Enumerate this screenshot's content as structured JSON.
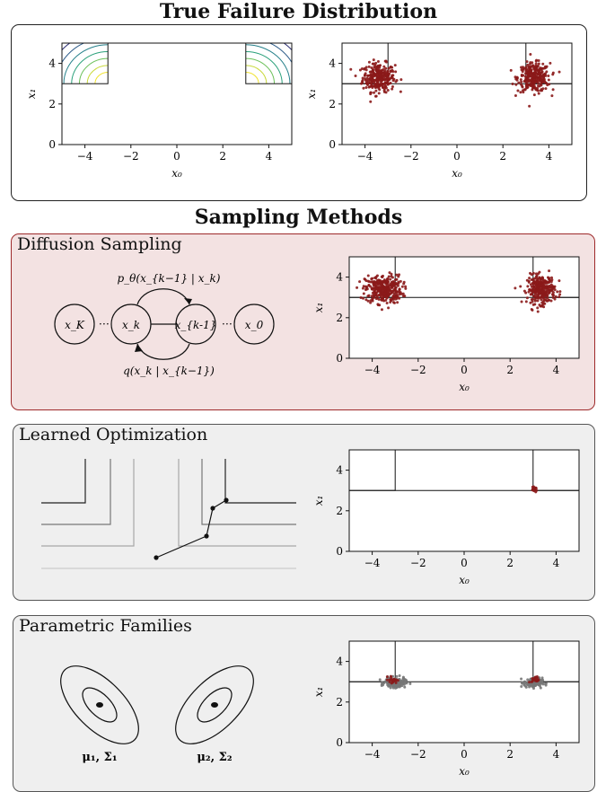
{
  "headings": {
    "true_failure": "True Failure Distribution",
    "sampling_methods": "Sampling Methods"
  },
  "colors": {
    "diffusion_panel_bg": "#f3e2e2",
    "diffusion_panel_border": "#9e2a2b",
    "gray_panel_bg": "#efefef",
    "samples_red": "#8b1a1a",
    "samples_gray": "#777777"
  },
  "diffusion": {
    "title": "Diffusion Sampling",
    "nodes": [
      "x_K",
      "x_k",
      "x_{k-1}",
      "x_0"
    ],
    "reverse_label": "p_θ(x_{k−1} | x_k)",
    "forward_label": "q(x_k | x_{k−1})"
  },
  "learned_optimization": {
    "title": "Learned Optimization"
  },
  "parametric": {
    "title": "Parametric Families",
    "component1": "μ₁, Σ₁",
    "component2": "μ₂, Σ₂"
  },
  "axes": {
    "xlabel": "x₀",
    "ylabel": "x₁",
    "xticks": [
      -4,
      -2,
      0,
      2,
      4
    ],
    "yticks": [
      0,
      2,
      4
    ],
    "xlim": [
      -5,
      5
    ],
    "ylim": [
      0,
      5
    ]
  },
  "failure_regions": [
    {
      "x": [
        -5,
        -3
      ],
      "y": [
        3,
        5
      ]
    },
    {
      "x": [
        3,
        5
      ],
      "y": [
        3,
        5
      ]
    }
  ],
  "chart_data": [
    {
      "type": "heatmap",
      "id": "true-density",
      "xlabel": "x₀",
      "ylabel": "x₁",
      "xlim": [
        -5,
        5
      ],
      "ylim": [
        0,
        5
      ],
      "description_regions": [
        [
          -5,
          -3,
          3,
          5
        ],
        [
          3,
          5,
          3,
          5
        ]
      ]
    },
    {
      "type": "scatter",
      "id": "true-samples",
      "xlabel": "x₀",
      "ylabel": "x₁",
      "xlim": [
        -5,
        5
      ],
      "ylim": [
        0,
        5
      ],
      "clusters": [
        {
          "center": [
            -3.4,
            3.3
          ],
          "spread": [
            0.35,
            0.35
          ],
          "count": 300,
          "color": "#8b1a1a"
        },
        {
          "center": [
            3.35,
            3.3
          ],
          "spread": [
            0.35,
            0.35
          ],
          "count": 300,
          "color": "#8b1a1a"
        }
      ]
    },
    {
      "type": "scatter",
      "id": "diffusion-samples",
      "xlabel": "x₀",
      "ylabel": "x₁",
      "xlim": [
        -5,
        5
      ],
      "ylim": [
        0,
        5
      ],
      "clusters": [
        {
          "center": [
            -3.5,
            3.4
          ],
          "spread": [
            0.4,
            0.35
          ],
          "count": 350,
          "color": "#8b1a1a"
        },
        {
          "center": [
            3.35,
            3.4
          ],
          "spread": [
            0.3,
            0.35
          ],
          "count": 300,
          "color": "#8b1a1a"
        }
      ]
    },
    {
      "type": "scatter",
      "id": "optimization-samples",
      "xlabel": "x₀",
      "ylabel": "x₁",
      "xlim": [
        -5,
        5
      ],
      "ylim": [
        0,
        5
      ],
      "clusters": [
        {
          "center": [
            3.05,
            3.05
          ],
          "spread": [
            0.06,
            0.05
          ],
          "count": 20,
          "color": "#8b1a1a"
        }
      ]
    },
    {
      "type": "scatter",
      "id": "parametric-samples",
      "xlabel": "x₀",
      "ylabel": "x₁",
      "xlim": [
        -5,
        5
      ],
      "ylim": [
        0,
        5
      ],
      "clusters": [
        {
          "center": [
            -3.0,
            2.95
          ],
          "spread": [
            0.22,
            0.12
          ],
          "count": 180,
          "color": "#777777"
        },
        {
          "center": [
            3.0,
            2.95
          ],
          "spread": [
            0.2,
            0.12
          ],
          "count": 160,
          "color": "#777777"
        },
        {
          "center": [
            -3.1,
            3.1
          ],
          "spread": [
            0.1,
            0.08
          ],
          "count": 25,
          "color": "#8b1a1a"
        },
        {
          "center": [
            3.1,
            3.1
          ],
          "spread": [
            0.08,
            0.08
          ],
          "count": 20,
          "color": "#8b1a1a"
        }
      ]
    }
  ]
}
